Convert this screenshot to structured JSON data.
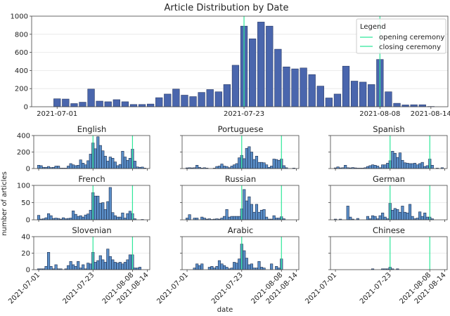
{
  "chart_data": [
    {
      "type": "bar",
      "title": "Article Distribution by Date",
      "xlabel": "",
      "ylabel": "",
      "ylim": [
        0,
        1000
      ],
      "yticks": [
        0,
        200,
        400,
        600,
        800,
        1000
      ],
      "xlim": [
        "2021-06-28",
        "2021-08-16"
      ],
      "xticks": [
        "2021-07-01",
        "2021-07-23",
        "2021-08-08",
        "2021-08-14"
      ],
      "grid": "horizontal",
      "bar_color": "#4a66ad",
      "legend": {
        "title": "Legend",
        "placement": "top-right",
        "entries": [
          "opening ceremony",
          "closing ceremony"
        ]
      },
      "vlines": [
        {
          "name": "opening ceremony",
          "x": "2021-07-23",
          "color": "#2ee89a"
        },
        {
          "name": "closing ceremony",
          "x": "2021-08-08",
          "color": "#2ee89a"
        }
      ],
      "start": "2021-07-01",
      "values": [
        88,
        85,
        35,
        50,
        195,
        62,
        55,
        78,
        55,
        25,
        25,
        30,
        100,
        140,
        195,
        128,
        112,
        158,
        190,
        165,
        245,
        458,
        890,
        750,
        935,
        890,
        635,
        440,
        418,
        428,
        355,
        228,
        97,
        140,
        448,
        283,
        272,
        245,
        522,
        165,
        38,
        20,
        22,
        22,
        3
      ]
    },
    {
      "type": "bar",
      "title": "English",
      "ylim": [
        0,
        400
      ],
      "yticks": [
        0,
        200,
        400
      ],
      "values": [
        40,
        35,
        15,
        15,
        25,
        12,
        15,
        30,
        30,
        5,
        5,
        5,
        30,
        60,
        45,
        35,
        40,
        105,
        65,
        45,
        95,
        175,
        310,
        240,
        385,
        280,
        215,
        150,
        90,
        140,
        125,
        80,
        35,
        50,
        210,
        140,
        100,
        125,
        235,
        90,
        20,
        15,
        18,
        5,
        0
      ]
    },
    {
      "type": "bar",
      "title": "Portuguese",
      "ylim": [
        0,
        400
      ],
      "yticks": [
        0,
        200,
        400
      ],
      "values": [
        8,
        10,
        8,
        10,
        40,
        15,
        5,
        10,
        5,
        0,
        0,
        5,
        25,
        30,
        55,
        30,
        25,
        10,
        30,
        45,
        60,
        130,
        160,
        120,
        245,
        265,
        200,
        110,
        150,
        75,
        75,
        70,
        45,
        15,
        30,
        115,
        110,
        100,
        115,
        35,
        10,
        0,
        0,
        5,
        0
      ]
    },
    {
      "type": "bar",
      "title": "Spanish",
      "ylim": [
        0,
        400
      ],
      "yticks": [
        0,
        200,
        400
      ],
      "values": [
        8,
        20,
        8,
        10,
        40,
        10,
        8,
        12,
        8,
        5,
        5,
        5,
        10,
        25,
        35,
        45,
        40,
        30,
        10,
        45,
        45,
        65,
        95,
        210,
        185,
        135,
        190,
        100,
        70,
        65,
        60,
        60,
        65,
        45,
        60,
        75,
        25,
        35,
        115,
        40,
        0,
        5,
        0,
        10,
        0
      ]
    },
    {
      "type": "bar",
      "title": "French",
      "ylim": [
        0,
        100
      ],
      "yticks": [
        0,
        50,
        100
      ],
      "values": [
        13,
        2,
        3,
        6,
        18,
        12,
        4,
        5,
        4,
        2,
        6,
        3,
        4,
        5,
        26,
        16,
        10,
        12,
        8,
        14,
        17,
        28,
        79,
        69,
        69,
        48,
        50,
        30,
        53,
        94,
        21,
        12,
        8,
        8,
        20,
        5,
        18,
        25,
        18,
        3,
        0,
        0,
        1,
        0,
        0
      ]
    },
    {
      "type": "bar",
      "title": "Russian",
      "ylim": [
        0,
        100
      ],
      "yticks": [
        0,
        50,
        100
      ],
      "values": [
        5,
        15,
        0,
        5,
        5,
        0,
        8,
        5,
        2,
        3,
        1,
        2,
        3,
        2,
        5,
        10,
        30,
        8,
        10,
        10,
        10,
        10,
        32,
        88,
        55,
        67,
        45,
        22,
        45,
        22,
        28,
        30,
        8,
        2,
        2,
        12,
        5,
        5,
        9,
        3,
        0,
        0,
        0,
        0,
        0
      ]
    },
    {
      "type": "bar",
      "title": "German",
      "ylim": [
        0,
        100
      ],
      "yticks": [
        0,
        50,
        100
      ],
      "values": [
        2,
        0,
        2,
        0,
        0,
        40,
        8,
        2,
        0,
        4,
        0,
        0,
        0,
        10,
        3,
        12,
        10,
        3,
        12,
        20,
        8,
        3,
        48,
        28,
        33,
        30,
        22,
        40,
        22,
        20,
        45,
        10,
        3,
        5,
        23,
        10,
        20,
        8,
        8,
        3,
        0,
        0,
        0,
        0,
        0
      ]
    },
    {
      "type": "bar",
      "title": "Slovenian",
      "ylim": [
        0,
        40
      ],
      "yticks": [
        0,
        20,
        40
      ],
      "values": [
        1,
        1,
        1,
        4,
        21,
        4,
        1,
        6,
        1,
        1,
        0,
        1,
        5,
        10,
        6,
        4,
        10,
        2,
        6,
        1,
        8,
        7,
        21,
        9,
        11,
        17,
        12,
        9,
        25,
        16,
        12,
        9,
        8,
        9,
        7,
        9,
        12,
        18,
        18,
        2,
        2,
        3,
        0,
        0,
        0
      ]
    },
    {
      "type": "bar",
      "title": "Arabic",
      "ylim": [
        0,
        40
      ],
      "yticks": [
        0,
        20,
        40
      ],
      "values": [
        0,
        0,
        0,
        2,
        7,
        5,
        7,
        0,
        0,
        3,
        4,
        2,
        4,
        11,
        7,
        5,
        3,
        1,
        2,
        9,
        8,
        13,
        31,
        23,
        14,
        6,
        7,
        2,
        2,
        10,
        3,
        2,
        0,
        0,
        7,
        0,
        4,
        2,
        13,
        0,
        0,
        0,
        0,
        0,
        0
      ]
    },
    {
      "type": "bar",
      "title": "Chinese",
      "ylim": [
        0,
        40
      ],
      "yticks": [
        0,
        20,
        40
      ],
      "values": [
        0,
        0,
        0,
        0,
        0,
        0,
        0,
        0,
        0,
        0,
        0,
        0,
        0,
        0,
        0,
        1,
        0,
        0,
        0,
        1,
        1,
        1,
        3,
        1,
        0,
        1,
        0,
        0,
        0,
        0,
        0,
        0,
        0,
        0,
        0,
        0,
        0,
        0,
        0,
        0,
        0,
        0,
        0,
        0,
        0
      ]
    }
  ],
  "subplots_common": {
    "ylabel": "number of articles",
    "xlabel": "date",
    "xlim": [
      "2021-06-29",
      "2021-08-15"
    ],
    "xticks": [
      "2021-07-01",
      "2021-07-23",
      "2021-08-08",
      "2021-08-14"
    ],
    "bar_color": "#5b8fc9",
    "edge_color": "#1c2b4a",
    "line_color": "#2ee89a"
  }
}
